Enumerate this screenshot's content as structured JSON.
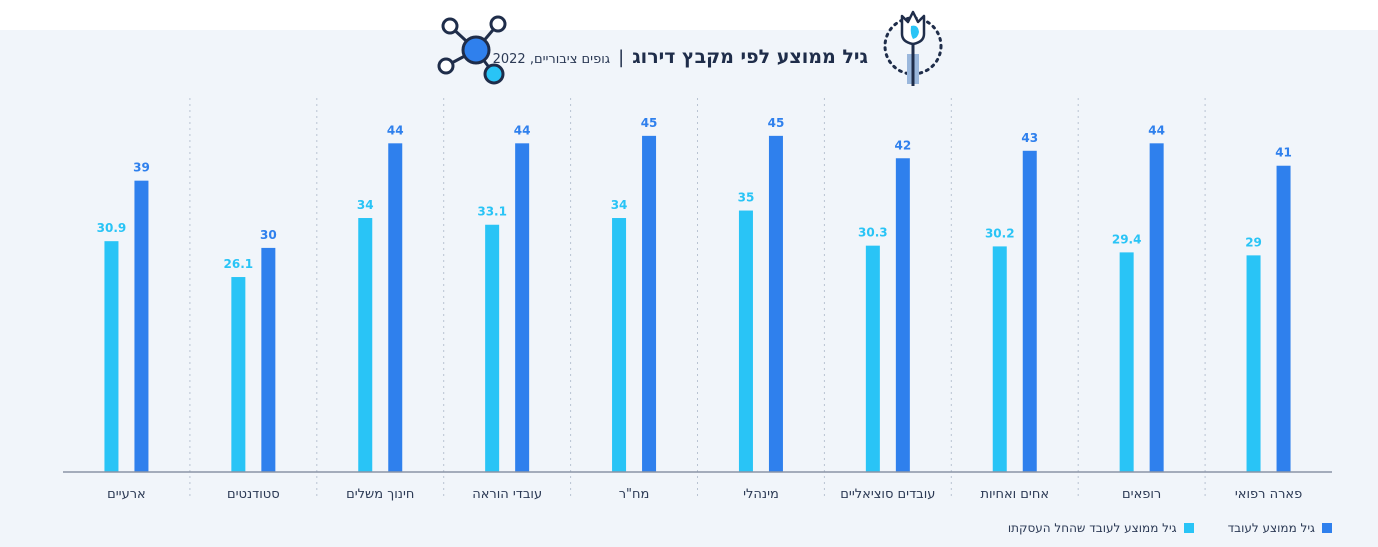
{
  "title": "גיל ממוצע לפי מקבץ דירוג",
  "subtitle_separator": "|",
  "subtitle": "גופים ציבוריים, 2022",
  "colors": {
    "current_age": "#2f80ed",
    "start_age": "#29c4f6",
    "background": "#f1f5fa",
    "axis": "#8a94a6"
  },
  "icons": [
    "flower-icon",
    "network-icon"
  ],
  "chart_data": {
    "type": "bar",
    "categories": [
      "פארה רפואי",
      "רופאים",
      "אחים ואחיות",
      "עובדים סוציאליים",
      "מינהלי",
      "מח\"ר",
      "עובדי הוראה",
      "חינוך משלים",
      "סטודנטים",
      "ארעיים"
    ],
    "series": [
      {
        "name": "גיל ממוצע לעובד",
        "values": [
          41,
          44,
          43,
          42,
          45,
          45,
          44,
          44,
          30,
          39
        ]
      },
      {
        "name": "גיל ממוצע לעובד שהחל העסקתו",
        "values": [
          29,
          29.4,
          30.2,
          30.3,
          35,
          34,
          33.1,
          34,
          26.1,
          30.9
        ]
      }
    ],
    "ylim": [
      0,
      45
    ],
    "category_order": "right-to-left",
    "grid": "vertical dotted separators",
    "legend_position": "bottom-right"
  }
}
